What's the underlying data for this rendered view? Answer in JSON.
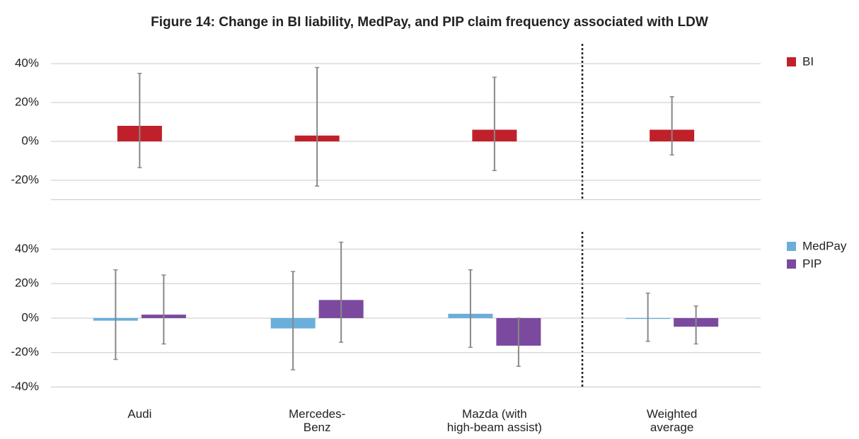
{
  "chart_data": [
    {
      "type": "bar",
      "title": "Figure 14: Change in BI liability, MedPay, and PIP claim frequency associated with LDW",
      "ylim": [
        -30,
        50
      ],
      "yticks": [
        {
          "value": -20,
          "label": "-20%"
        },
        {
          "value": 0,
          "label": "0%"
        },
        {
          "value": 20,
          "label": "20%"
        },
        {
          "value": 40,
          "label": "40%"
        }
      ],
      "grid": true,
      "series": [
        {
          "name": "BI",
          "color": "#c0202a",
          "values": [
            8,
            3,
            6,
            6
          ],
          "upper": [
            35,
            38,
            33,
            23
          ],
          "lower": [
            -13.5,
            -23,
            -15,
            -7
          ]
        }
      ]
    },
    {
      "type": "bar",
      "categories": [
        "Audi",
        "Mercedes-\nBenz",
        "Mazda (with\nhigh-beam assist)",
        "Weighted\naverage"
      ],
      "ylim": [
        -40,
        50
      ],
      "yticks": [
        {
          "value": -40,
          "label": "-40%"
        },
        {
          "value": -20,
          "label": "-20%"
        },
        {
          "value": 0,
          "label": "0%"
        },
        {
          "value": 20,
          "label": "20%"
        },
        {
          "value": 40,
          "label": "40%"
        }
      ],
      "grid": true,
      "series": [
        {
          "name": "MedPay",
          "color": "#6aaedb",
          "values": [
            -1.5,
            -6,
            2.5,
            -0.5
          ],
          "upper": [
            28,
            27,
            28,
            14.5
          ],
          "lower": [
            -24,
            -30,
            -17,
            -13.5
          ]
        },
        {
          "name": "PIP",
          "color": "#7b4a9e",
          "values": [
            2,
            10.5,
            -16,
            -5
          ],
          "upper": [
            25,
            44,
            0,
            7
          ],
          "lower": [
            -15,
            -14,
            -28,
            -15
          ]
        }
      ]
    }
  ]
}
